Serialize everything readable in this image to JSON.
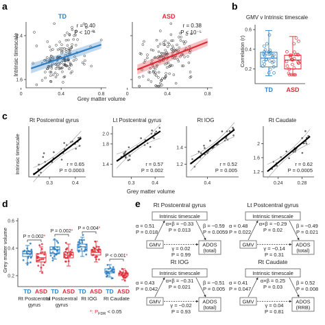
{
  "chart_data": [
    {
      "panel": "a",
      "type": "scatter",
      "ylabel": "Intrinsic timescale",
      "xlabel": "Grey matter volume",
      "xlim": [
        0.05,
        0.85
      ],
      "ylim": [
        1.45,
        2.65
      ],
      "xticks": [
        "0",
        "0.4",
        "0.8"
      ],
      "yticks": [
        "1.6",
        "2.4"
      ],
      "xtick_values": [
        0,
        0.4,
        0.8
      ],
      "ytick_values": [
        1.6,
        2.4
      ],
      "subplots": [
        {
          "group": "TD",
          "color": "#2e7fc2",
          "r_text": "r = 0.40",
          "p_text": "P < 10⁻⁶",
          "fit": {
            "slope": 0.62,
            "intercept": 1.74
          }
        },
        {
          "group": "ASD",
          "color": "#e02b35",
          "r_text": "r = 0.38",
          "p_text": "P < 10⁻⁵",
          "fit": {
            "slope": 0.72,
            "intercept": 1.71
          }
        }
      ]
    },
    {
      "panel": "b",
      "type": "box",
      "title": "GMV v Intrinsic timescale",
      "ylabel": "Correlation (r)",
      "ylim": [
        0.05,
        0.65
      ],
      "yticks": [
        "0.2",
        "0.4",
        "0.6"
      ],
      "ytick_values": [
        0.2,
        0.4,
        0.6
      ],
      "categories": [
        "TD",
        "ASD"
      ],
      "colors": [
        "#2e7fc2",
        "#e02b35"
      ],
      "boxes": [
        {
          "min": 0.13,
          "q1": 0.22,
          "median": 0.31,
          "q3": 0.37,
          "max": 0.59
        },
        {
          "min": 0.14,
          "q1": 0.2,
          "median": 0.29,
          "q3": 0.34,
          "max": 0.53
        }
      ]
    },
    {
      "panel": "c",
      "type": "scatter",
      "ylabel": "Intrinsic timescale",
      "xlabel": "Grey matter volume",
      "subplots": [
        {
          "title": "Rt Postcentral gyrus",
          "r_text": "r = 0.65",
          "p_text": "P = 0.0003",
          "xlim": [
            0.22,
            0.44
          ],
          "ylim": [
            1.05,
            2.1
          ],
          "xticks": [
            "0.3",
            "0.4"
          ],
          "xtick_values": [
            0.3,
            0.4
          ],
          "yticks": [],
          "ytick_values": [],
          "fit": {
            "slope": 4.1,
            "intercept": 0.12
          }
        },
        {
          "title": "Lt Postcentral gyrus",
          "r_text": "r = 0.57",
          "p_text": "P = 0.002",
          "xlim": [
            0.22,
            0.44
          ],
          "ylim": [
            1.15,
            2.15
          ],
          "xticks": [
            "0.3",
            "0.4"
          ],
          "xtick_values": [
            0.3,
            0.4
          ],
          "yticks": [
            "1.4",
            "1.8",
            "2.0"
          ],
          "ytick_values": [
            1.4,
            1.8,
            2.0
          ],
          "fit": {
            "slope": 3.2,
            "intercept": 0.7
          }
        },
        {
          "title": "Rt IOG",
          "r_text": "r = 0.52",
          "p_text": "P = 0.005",
          "xlim": [
            0.28,
            0.58
          ],
          "ylim": [
            1.05,
            1.65
          ],
          "xticks": [
            "0.4"
          ],
          "xtick_values": [
            0.4
          ],
          "yticks": [
            "1.2",
            "1.4"
          ],
          "ytick_values": [
            1.2,
            1.4
          ],
          "fit": {
            "slope": 1.6,
            "intercept": 0.72
          }
        },
        {
          "title": "Rt Caudate",
          "r_text": "r = 0.62",
          "p_text": "P = 0.0005",
          "xlim": [
            0.215,
            0.3
          ],
          "ylim": [
            1.05,
            2.5
          ],
          "xticks": [
            "0.24",
            "0.28"
          ],
          "xtick_values": [
            0.24,
            0.28
          ],
          "yticks": [
            "1.2",
            "1.6",
            "2"
          ],
          "ytick_values": [
            1.2,
            1.6,
            2.0
          ],
          "fit": {
            "slope": 14.0,
            "intercept": -1.9
          }
        }
      ]
    },
    {
      "panel": "d",
      "type": "box",
      "ylabel": "Grey matter volume",
      "ylim": [
        0.12,
        0.62
      ],
      "yticks": [
        "0.2",
        "0.4",
        "0.6"
      ],
      "ytick_values": [
        0.2,
        0.4,
        0.6
      ],
      "legend_note": "*: P",
      "legend_note_sub": "FDR",
      "legend_note_tail": " < 0.05",
      "groups": [
        {
          "region": "Rt Postcentral gyrus",
          "p_text": "P = 0.002",
          "star": "*",
          "boxes": [
            {
              "label": "TD",
              "color": "#2e7fc2",
              "min": 0.29,
              "q1": 0.34,
              "median": 0.36,
              "q3": 0.38,
              "max": 0.42
            },
            {
              "label": "ASD",
              "color": "#e02b35",
              "min": 0.23,
              "q1": 0.3,
              "median": 0.33,
              "q3": 0.36,
              "max": 0.41
            }
          ]
        },
        {
          "region": "Lt Postcentral gyrus",
          "p_text": "P = 0.002",
          "star": "*",
          "boxes": [
            {
              "label": "TD",
              "color": "#2e7fc2",
              "min": 0.32,
              "q1": 0.36,
              "median": 0.39,
              "q3": 0.41,
              "max": 0.46
            },
            {
              "label": "ASD",
              "color": "#e02b35",
              "min": 0.27,
              "q1": 0.33,
              "median": 0.35,
              "q3": 0.37,
              "max": 0.43
            }
          ]
        },
        {
          "region": "Rt IOG",
          "p_text": "P = 0.004",
          "star": "*",
          "boxes": [
            {
              "label": "TD",
              "color": "#2e7fc2",
              "min": 0.34,
              "q1": 0.38,
              "median": 0.41,
              "q3": 0.43,
              "max": 0.48
            },
            {
              "label": "ASD",
              "color": "#e02b35",
              "min": 0.3,
              "q1": 0.35,
              "median": 0.37,
              "q3": 0.39,
              "max": 0.45
            }
          ]
        },
        {
          "region": "Rt Caudate",
          "p_text": "P < 0.001",
          "star": "*",
          "boxes": [
            {
              "label": "TD",
              "color": "#2e7fc2",
              "min": 0.19,
              "q1": 0.22,
              "median": 0.23,
              "q3": 0.25,
              "max": 0.28
            },
            {
              "label": "ASD",
              "color": "#e02b35",
              "min": 0.17,
              "q1": 0.2,
              "median": 0.21,
              "q3": 0.22,
              "max": 0.25
            }
          ]
        }
      ]
    }
  ],
  "panel_labels": {
    "a": "a",
    "b": "b",
    "c": "c",
    "d": "d",
    "e": "e"
  },
  "group_labels": {
    "td": "TD",
    "asd": "ASD"
  },
  "region_lines": [
    [
      "Rt Postcentral",
      "gyrus"
    ],
    [
      "Lt Postcentral",
      "gyrus"
    ],
    [
      "Rt IOG",
      ""
    ],
    [
      "Rt Caudate",
      ""
    ]
  ],
  "mediation": [
    {
      "title": "Rt Postcentral gyrus",
      "mediator": "Intrinsic timescale",
      "x": "GMV",
      "y": "ADOS",
      "y_sub": "(total)",
      "alpha": "α = 0.51",
      "p_alpha": "P = 0.018",
      "ab": "α×β = −0.33",
      "p_ab": "P = 0.013",
      "beta": "β = −0.59",
      "p_beta": "P = 0.0059",
      "gamma": "γ = 0.02",
      "p_gamma": "P = 0.99"
    },
    {
      "title": "Lt Postcentral gyrus",
      "mediator": "Intrinsic timescale",
      "x": "GMV",
      "y": "ADOS",
      "y_sub": "(total)",
      "alpha": "α = 0.48",
      "p_alpha": "P = 0.022",
      "ab": "α×β = −0.29",
      "p_ab": "P = 0.02",
      "beta": "β = −0.49",
      "p_beta": "P = 0.021",
      "gamma": "γ = −0.14",
      "p_gamma": "P = 0.31"
    },
    {
      "title": "Rt IOG",
      "mediator": "Intrinsic timescale",
      "x": "GMV",
      "y": "ADOS",
      "y_sub": "(total)",
      "alpha": "α = 0.43",
      "p_alpha": "P = 0.042",
      "ab": "α×β = −0.31",
      "p_ab": "P = 0.021",
      "beta": "β = −0.51",
      "p_beta": "P = 0.005",
      "gamma": "γ = −0.02",
      "p_gamma": "P = 0.93"
    },
    {
      "title": "Rt Caudate",
      "mediator": "Intrinsic timescale",
      "x": "GMV",
      "y": "ADOS",
      "y_sub": "(RRB)",
      "alpha": "α = 0.41",
      "p_alpha": "P = 0.047",
      "ab": "α×β = 0.25",
      "p_ab": "P = 0.03",
      "beta": "β = 0.52",
      "p_beta": "P = 0.008",
      "gamma": "γ = 0.04",
      "p_gamma": "P = 0.81"
    }
  ]
}
